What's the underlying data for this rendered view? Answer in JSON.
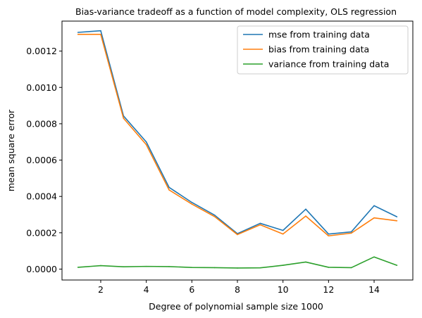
{
  "chart_data": {
    "type": "line",
    "title": "Bias-variance tradeoff as a function of model complexity, OLS regression",
    "xlabel": "Degree of polynomial sample size 1000",
    "ylabel": "mean square error",
    "xlim": [
      0.3,
      15.7
    ],
    "ylim": [
      -6e-05,
      0.001365
    ],
    "x_ticks": [
      2,
      4,
      6,
      8,
      10,
      12,
      14
    ],
    "y_ticks": [
      0.0,
      0.0002,
      0.0004,
      0.0006,
      0.0008,
      0.001,
      0.0012
    ],
    "y_tick_labels": [
      "0.0000",
      "0.0002",
      "0.0004",
      "0.0006",
      "0.0008",
      "0.0010",
      "0.0012"
    ],
    "grid": false,
    "legend_position": "top-right",
    "x": [
      1,
      2,
      3,
      4,
      5,
      6,
      7,
      8,
      9,
      10,
      11,
      12,
      13,
      14,
      15
    ],
    "series": [
      {
        "name": "mse from training data",
        "color": "#1f77b4",
        "values": [
          0.001303,
          0.001312,
          0.000843,
          0.0007,
          0.00045,
          0.000367,
          0.000297,
          0.000195,
          0.000252,
          0.000213,
          0.00033,
          0.000193,
          0.000205,
          0.000349,
          0.000288
        ]
      },
      {
        "name": "bias from training data",
        "color": "#ff7f0e",
        "values": [
          0.001292,
          0.001292,
          0.00083,
          0.000685,
          0.000436,
          0.000358,
          0.000289,
          0.00019,
          0.000244,
          0.000193,
          0.000292,
          0.000183,
          0.000198,
          0.000282,
          0.000266
        ]
      },
      {
        "name": "variance from training data",
        "color": "#2ca02c",
        "values": [
          1e-05,
          1.9e-05,
          1.3e-05,
          1.5e-05,
          1.4e-05,
          9e-06,
          8e-06,
          6e-06,
          7e-06,
          2.1e-05,
          3.9e-05,
          1e-05,
          8e-06,
          6.7e-05,
          2.1e-05
        ]
      }
    ]
  }
}
